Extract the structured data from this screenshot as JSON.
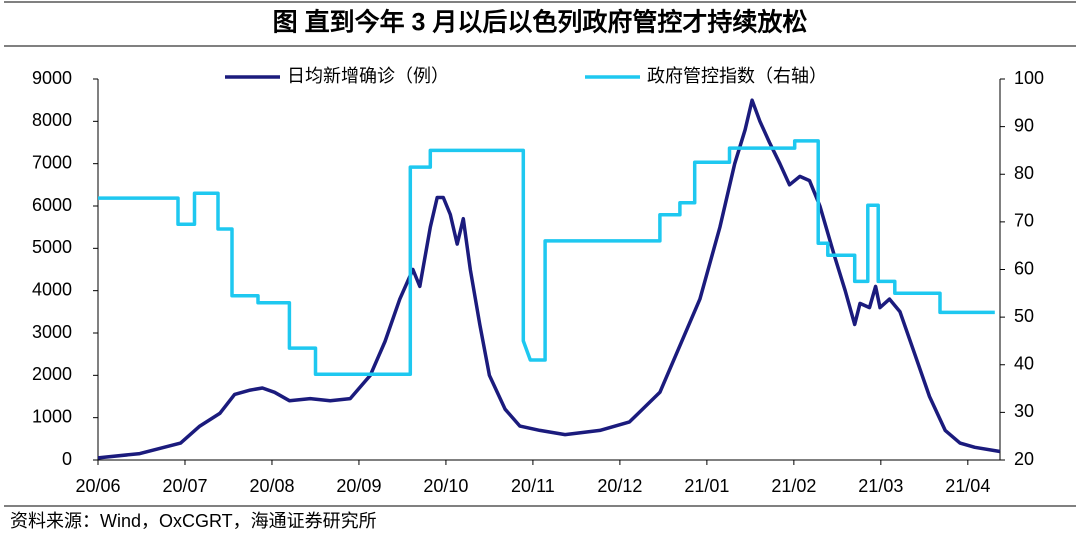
{
  "chart_data": {
    "type": "line",
    "title": "图  直到今年 3 月以后以色列政府管控才持续放松",
    "source": "资料来源：Wind，OxCGRT，海通证券研究所",
    "xlim": [
      0,
      10.37
    ],
    "xticks": [
      {
        "value": 0,
        "label": "20/06"
      },
      {
        "value": 1,
        "label": "20/07"
      },
      {
        "value": 2,
        "label": "20/08"
      },
      {
        "value": 3,
        "label": "20/09"
      },
      {
        "value": 4,
        "label": "20/10"
      },
      {
        "value": 5,
        "label": "20/11"
      },
      {
        "value": 6,
        "label": "20/12"
      },
      {
        "value": 7,
        "label": "21/01"
      },
      {
        "value": 8,
        "label": "21/02"
      },
      {
        "value": 9,
        "label": "21/03"
      },
      {
        "value": 10,
        "label": "21/04"
      }
    ],
    "ylim": [
      0,
      9000
    ],
    "yticks": [
      0,
      1000,
      2000,
      3000,
      4000,
      5000,
      6000,
      7000,
      8000,
      9000
    ],
    "y2lim": [
      20,
      100
    ],
    "y2ticks": [
      20,
      30,
      40,
      50,
      60,
      70,
      80,
      90,
      100
    ],
    "legend": "top",
    "series": [
      {
        "name": "日均新增确诊（例）",
        "color": "#1b1b7d",
        "x": [
          0,
          0.48,
          0.95,
          1.17,
          1.4,
          1.57,
          1.75,
          1.89,
          2.03,
          2.2,
          2.44,
          2.67,
          2.9,
          3.13,
          3.3,
          3.47,
          3.62,
          3.7,
          3.82,
          3.9,
          3.97,
          4.05,
          4.13,
          4.2,
          4.28,
          4.39,
          4.5,
          4.68,
          4.85,
          5.08,
          5.37,
          5.77,
          6.11,
          6.46,
          6.69,
          6.92,
          7.15,
          7.32,
          7.44,
          7.52,
          7.61,
          7.72,
          7.84,
          7.95,
          8.07,
          8.18,
          8.3,
          8.47,
          8.59,
          8.7,
          8.76,
          8.87,
          8.94,
          8.99,
          9.1,
          9.22,
          9.39,
          9.56,
          9.74,
          9.91,
          10.08,
          10.37
        ],
        "values": [
          50,
          150,
          400,
          800,
          1100,
          1550,
          1650,
          1700,
          1600,
          1400,
          1450,
          1400,
          1450,
          2000,
          2800,
          3800,
          4500,
          4100,
          5500,
          6200,
          6200,
          5800,
          5100,
          5700,
          4500,
          3200,
          2000,
          1200,
          800,
          700,
          600,
          700,
          900,
          1600,
          2700,
          3800,
          5500,
          7000,
          7800,
          8500,
          8000,
          7500,
          7000,
          6500,
          6700,
          6600,
          6000,
          4800,
          4000,
          3200,
          3700,
          3600,
          4100,
          3600,
          3800,
          3500,
          2500,
          1500,
          700,
          400,
          300,
          200
        ]
      },
      {
        "name": "政府管控指数（右轴）",
        "color": "#1ec8f0",
        "axis": "y2",
        "x": [
          0,
          0.92,
          0.92,
          1.11,
          1.11,
          1.38,
          1.38,
          1.54,
          1.54,
          1.84,
          1.84,
          2.2,
          2.2,
          2.5,
          2.5,
          3.59,
          3.59,
          3.82,
          3.82,
          4.89,
          4.89,
          4.97,
          5.14,
          5.14,
          6.46,
          6.46,
          6.69,
          6.69,
          6.86,
          6.86,
          7.26,
          7.26,
          8.01,
          8.01,
          8.28,
          8.28,
          8.39,
          8.39,
          8.7,
          8.7,
          8.85,
          8.85,
          8.97,
          8.97,
          9.16,
          9.16,
          9.68,
          9.68,
          10.31
        ],
        "values": [
          75,
          75,
          69.5,
          69.5,
          76,
          76,
          68.5,
          68.5,
          54.5,
          54.5,
          53,
          53,
          43.5,
          43.5,
          38,
          38,
          81.5,
          81.5,
          85,
          85,
          45,
          41,
          41,
          66,
          66,
          71.5,
          71.5,
          74,
          74,
          82.5,
          82.5,
          85.5,
          85.5,
          87,
          87,
          65.5,
          65.5,
          63,
          63,
          57.5,
          57.5,
          73.5,
          73.5,
          57.5,
          57.5,
          55,
          55,
          51,
          51
        ]
      }
    ]
  }
}
